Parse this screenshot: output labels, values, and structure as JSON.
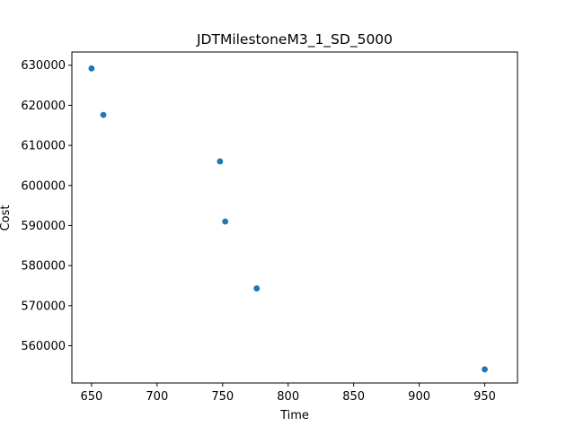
{
  "chart_data": {
    "type": "scatter",
    "title": "JDTMilestoneM3_1_SD_5000",
    "xlabel": "Time",
    "ylabel": "Cost",
    "xlim": [
      635,
      975
    ],
    "ylim": [
      550700,
      633300
    ],
    "xticks": [
      650,
      700,
      750,
      800,
      850,
      900,
      950
    ],
    "yticks": [
      560000,
      570000,
      580000,
      590000,
      600000,
      610000,
      620000,
      630000
    ],
    "xtick_labels": [
      "650",
      "700",
      "750",
      "800",
      "850",
      "900",
      "950"
    ],
    "ytick_labels": [
      "560000",
      "570000",
      "580000",
      "590000",
      "600000",
      "610000",
      "620000",
      "630000"
    ],
    "grid": false,
    "marker_color": "#1f77b4",
    "points": [
      {
        "x": 650,
        "y": 629200
      },
      {
        "x": 659,
        "y": 617600
      },
      {
        "x": 748,
        "y": 606000
      },
      {
        "x": 752,
        "y": 591000
      },
      {
        "x": 776,
        "y": 574300
      },
      {
        "x": 950,
        "y": 554100
      }
    ]
  }
}
